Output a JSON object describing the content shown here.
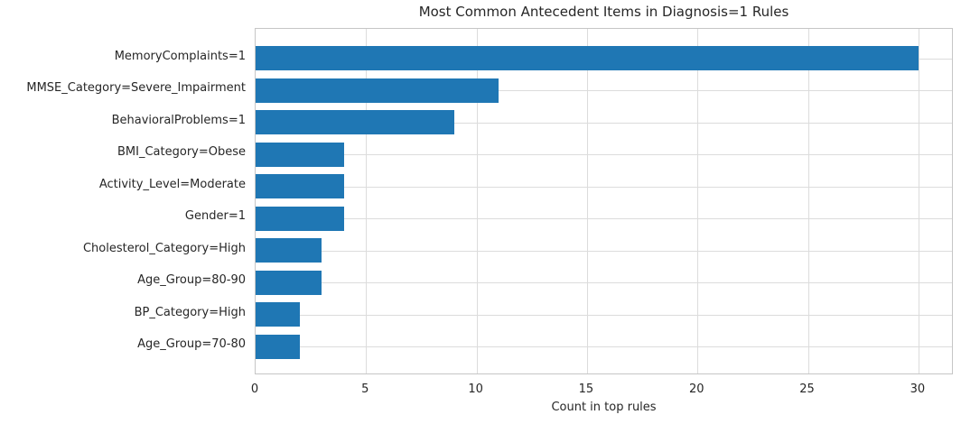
{
  "chart_data": {
    "type": "bar",
    "orientation": "horizontal",
    "title": "Most Common Antecedent Items in Diagnosis=1 Rules",
    "xlabel": "Count in top rules",
    "ylabel": "",
    "categories": [
      "MemoryComplaints=1",
      "MMSE_Category=Severe_Impairment",
      "BehavioralProblems=1",
      "BMI_Category=Obese",
      "Activity_Level=Moderate",
      "Gender=1",
      "Cholesterol_Category=High",
      "Age_Group=80-90",
      "BP_Category=High",
      "Age_Group=70-80"
    ],
    "values": [
      30,
      11,
      9,
      4,
      4,
      4,
      3,
      3,
      2,
      2
    ],
    "xticks": [
      0,
      5,
      10,
      15,
      20,
      25,
      30
    ],
    "xlim": [
      0,
      31.6
    ],
    "grid": true,
    "legend": null,
    "bar_color": "#1f77b4",
    "grid_color": "#dcdcdc",
    "spine_color": "#c6c6c6",
    "text_color": "#262626"
  }
}
